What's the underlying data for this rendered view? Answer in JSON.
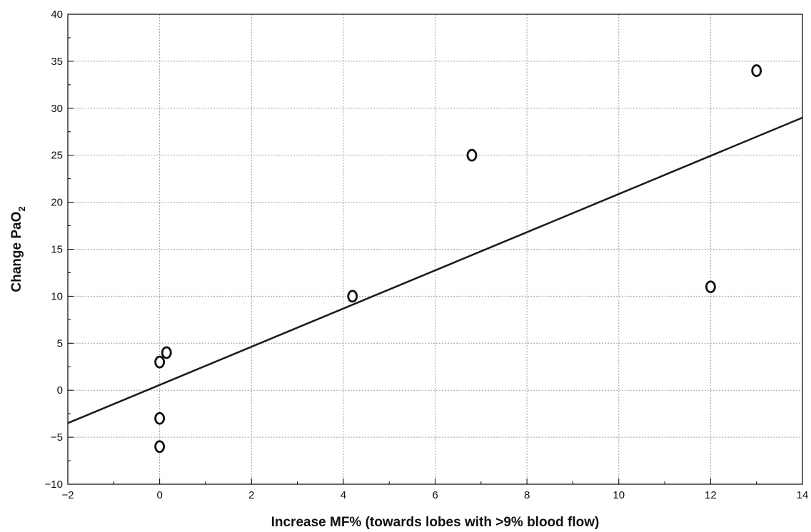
{
  "chart_data": {
    "type": "scatter",
    "title": "",
    "xlabel": "Increase MF% (towards lobes with >9% blood flow)",
    "ylabel_main": "Change PaO",
    "ylabel_sub": "2",
    "xlim": [
      -2,
      14
    ],
    "ylim": [
      -10,
      40
    ],
    "x_ticks": [
      -2,
      0,
      2,
      4,
      6,
      8,
      10,
      12,
      14
    ],
    "y_ticks": [
      -10,
      -5,
      0,
      5,
      10,
      15,
      20,
      25,
      30,
      35,
      40
    ],
    "x_tick_labels": [
      "−2",
      "0",
      "2",
      "4",
      "6",
      "8",
      "10",
      "12",
      "14"
    ],
    "y_tick_labels": [
      "−10",
      "−5",
      "0",
      "5",
      "10",
      "15",
      "20",
      "25",
      "30",
      "35",
      "40"
    ],
    "grid": true,
    "points": [
      {
        "x": 0.0,
        "y": 3
      },
      {
        "x": 0.15,
        "y": 4
      },
      {
        "x": 0.0,
        "y": -3
      },
      {
        "x": 0.0,
        "y": -6
      },
      {
        "x": 4.2,
        "y": 10
      },
      {
        "x": 6.8,
        "y": 25
      },
      {
        "x": 12.0,
        "y": 11
      },
      {
        "x": 13.0,
        "y": 34
      }
    ],
    "fit_line": {
      "x": [
        -2,
        14
      ],
      "y": [
        -3.5,
        29
      ]
    }
  }
}
